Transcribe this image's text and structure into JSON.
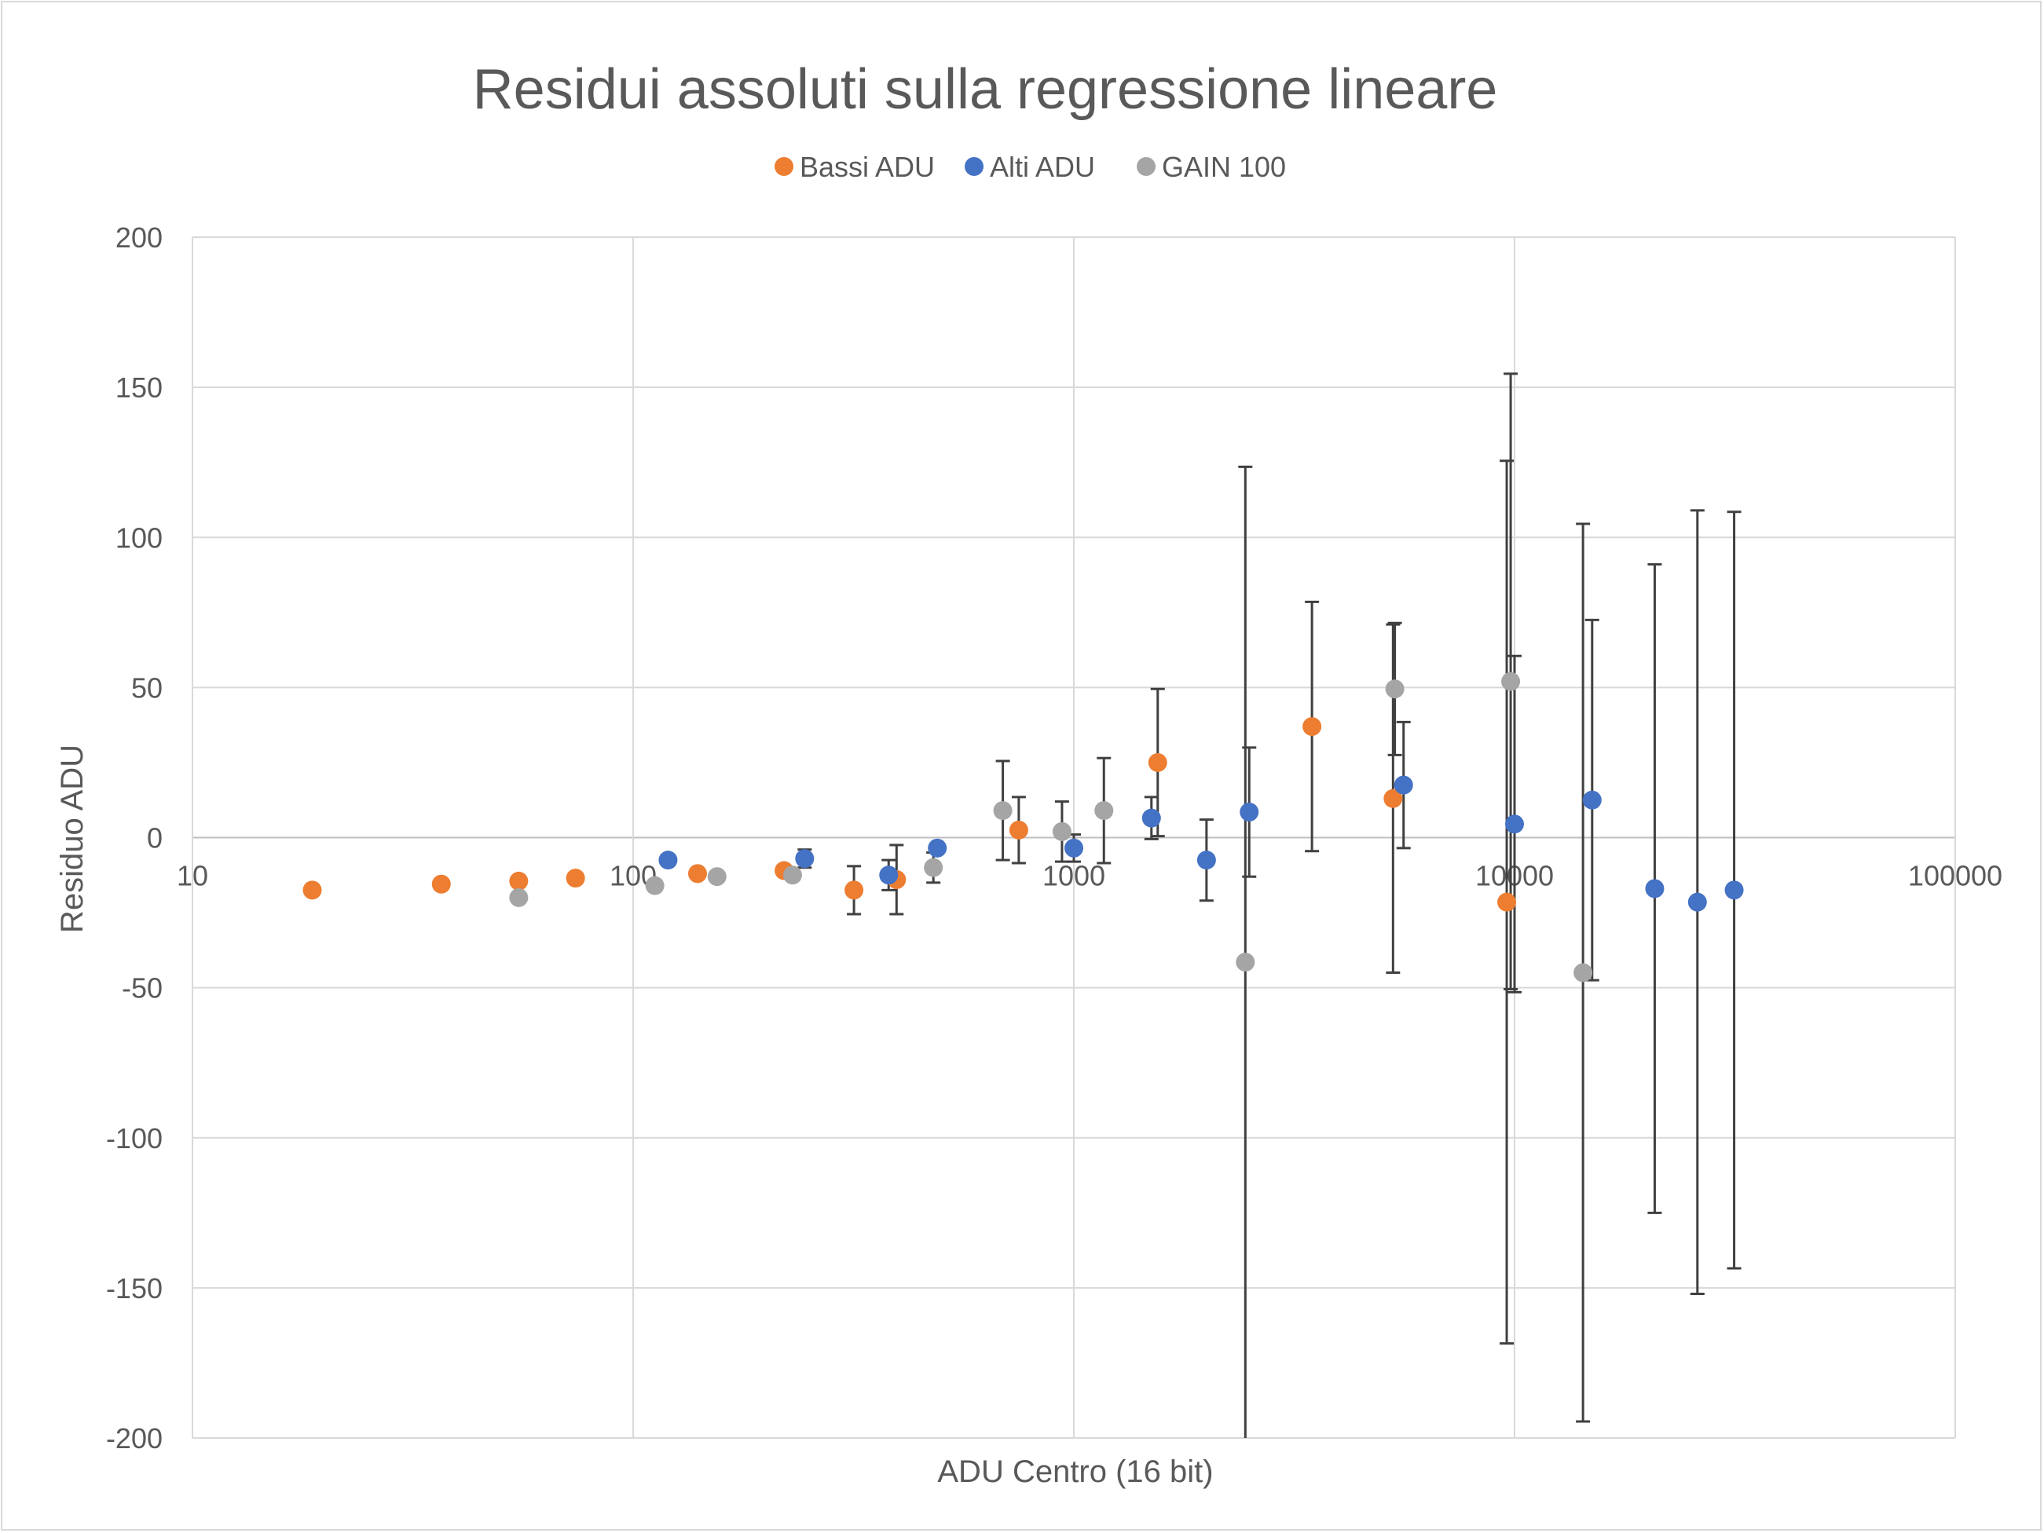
{
  "chart_data": {
    "type": "scatter",
    "title": "Residui assoluti sulla regressione lineare",
    "xlabel": "ADU Centro (16 bit)",
    "ylabel": "Residuo ADU",
    "xscale": "log",
    "xlim": [
      10,
      100000
    ],
    "ylim": [
      -200,
      200
    ],
    "xticks": [
      "10",
      "100",
      "1000",
      "10000",
      "100000"
    ],
    "yticks": [
      "200",
      "150",
      "100",
      "50",
      "0",
      "-50",
      "-100",
      "-150",
      "-200"
    ],
    "grid": true,
    "legend_position": "top",
    "series": [
      {
        "name": "Bassi ADU",
        "color": "#ED7D31",
        "points": [
          {
            "x": 18.7,
            "y": -17.5,
            "err": 0
          },
          {
            "x": 36.7,
            "y": -15.5,
            "err": 0
          },
          {
            "x": 55,
            "y": -14.5,
            "err": 0
          },
          {
            "x": 74,
            "y": -13.5,
            "err": 0
          },
          {
            "x": 140,
            "y": -12,
            "err": 0
          },
          {
            "x": 220,
            "y": -11,
            "err": 0
          },
          {
            "x": 317,
            "y": -17.5,
            "err": 8
          },
          {
            "x": 396,
            "y": -14,
            "err": 11.5
          },
          {
            "x": 750,
            "y": 2.5,
            "err": 11
          },
          {
            "x": 1550,
            "y": 25,
            "err": 24.5
          },
          {
            "x": 3470,
            "y": 37,
            "err": 41.5
          },
          {
            "x": 5300,
            "y": 13,
            "err": 58
          },
          {
            "x": 9600,
            "y": -21.5,
            "err": 147
          }
        ]
      },
      {
        "name": "Alti ADU",
        "color": "#4472C4",
        "points": [
          {
            "x": 120,
            "y": -7.5,
            "err": 0
          },
          {
            "x": 245,
            "y": -7,
            "err": 3
          },
          {
            "x": 380,
            "y": -12.5,
            "err": 5
          },
          {
            "x": 490,
            "y": -3.5,
            "err": 0
          },
          {
            "x": 1000,
            "y": -3.5,
            "err": 4.5
          },
          {
            "x": 1500,
            "y": 6.5,
            "err": 7
          },
          {
            "x": 2000,
            "y": -7.5,
            "err": 13.5
          },
          {
            "x": 2500,
            "y": 8.5,
            "err": 21.5
          },
          {
            "x": 5600,
            "y": 17.5,
            "err": 21
          },
          {
            "x": 10000,
            "y": 4.5,
            "err": 56
          },
          {
            "x": 15000,
            "y": 12.5,
            "err": 60
          },
          {
            "x": 20800,
            "y": -17,
            "err": 108
          },
          {
            "x": 26000,
            "y": -21.5,
            "err": 130.5
          },
          {
            "x": 31500,
            "y": -17.5,
            "err": 126
          }
        ]
      },
      {
        "name": "GAIN 100",
        "color": "#A5A5A5",
        "points": [
          {
            "x": 55,
            "y": -20,
            "err": 0
          },
          {
            "x": 112,
            "y": -16,
            "err": 0
          },
          {
            "x": 155,
            "y": -13,
            "err": 0
          },
          {
            "x": 230,
            "y": -12.5,
            "err": 1.5
          },
          {
            "x": 480,
            "y": -10,
            "err": 5
          },
          {
            "x": 690,
            "y": 9,
            "err": 16.5
          },
          {
            "x": 940,
            "y": 2,
            "err": 10
          },
          {
            "x": 1170,
            "y": 9,
            "err": 17.5
          },
          {
            "x": 2450,
            "y": -41.5,
            "err": 165
          },
          {
            "x": 5350,
            "y": 49.5,
            "err": 22
          },
          {
            "x": 9800,
            "y": 52,
            "err": 102.5
          },
          {
            "x": 14300,
            "y": -45,
            "err": 149.5
          }
        ]
      }
    ]
  }
}
